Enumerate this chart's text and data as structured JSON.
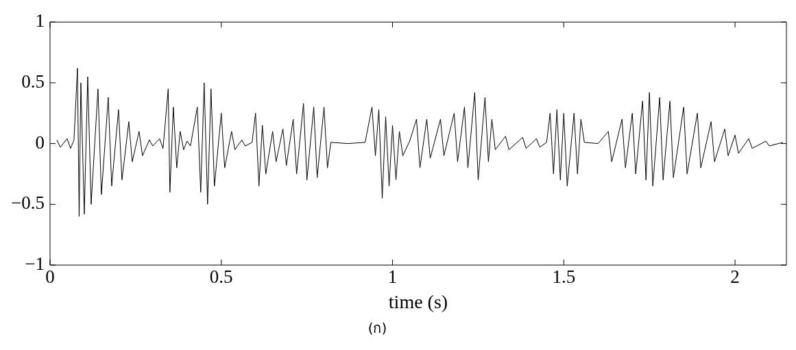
{
  "chart_data": {
    "type": "line",
    "xlabel": "time (s)",
    "annotations": [
      "(ก)"
    ],
    "xlim": [
      0,
      2.15
    ],
    "ylim": [
      -1,
      1
    ],
    "xticks": [
      0,
      0.5,
      1,
      1.5,
      2
    ],
    "yticks": [
      {
        "value": -1,
        "label": "−1"
      },
      {
        "value": -0.5,
        "label": "−0.5"
      },
      0,
      0.5,
      1
    ],
    "grid": false,
    "legend": false,
    "marker": "none",
    "line_style": "solid",
    "series": [
      {
        "color": "#000000",
        "x": [
          0.02,
          0.03,
          0.05,
          0.06,
          0.07,
          0.08,
          0.085,
          0.09,
          0.1,
          0.11,
          0.12,
          0.14,
          0.15,
          0.17,
          0.18,
          0.2,
          0.21,
          0.23,
          0.24,
          0.26,
          0.27,
          0.29,
          0.3,
          0.31,
          0.32,
          0.33,
          0.345,
          0.35,
          0.36,
          0.37,
          0.38,
          0.39,
          0.4,
          0.41,
          0.43,
          0.44,
          0.45,
          0.46,
          0.47,
          0.48,
          0.5,
          0.51,
          0.53,
          0.54,
          0.56,
          0.57,
          0.59,
          0.6,
          0.61,
          0.62,
          0.63,
          0.65,
          0.66,
          0.68,
          0.69,
          0.71,
          0.72,
          0.74,
          0.75,
          0.77,
          0.78,
          0.8,
          0.81,
          0.82,
          0.87,
          0.92,
          0.94,
          0.95,
          0.96,
          0.97,
          0.98,
          0.99,
          1.0,
          1.01,
          1.02,
          1.03,
          1.05,
          1.07,
          1.08,
          1.1,
          1.11,
          1.14,
          1.15,
          1.18,
          1.19,
          1.21,
          1.22,
          1.24,
          1.25,
          1.27,
          1.28,
          1.29,
          1.3,
          1.33,
          1.34,
          1.38,
          1.39,
          1.42,
          1.43,
          1.45,
          1.46,
          1.47,
          1.48,
          1.49,
          1.5,
          1.51,
          1.53,
          1.54,
          1.55,
          1.56,
          1.6,
          1.63,
          1.64,
          1.67,
          1.68,
          1.7,
          1.71,
          1.73,
          1.74,
          1.75,
          1.76,
          1.78,
          1.79,
          1.81,
          1.82,
          1.85,
          1.86,
          1.89,
          1.9,
          1.93,
          1.94,
          1.97,
          1.98,
          2.0,
          2.01,
          2.04,
          2.05,
          2.09,
          2.1,
          2.14
        ],
        "values": [
          0.03,
          -0.03,
          0.04,
          -0.04,
          0.03,
          0.62,
          -0.6,
          0.5,
          -0.58,
          0.55,
          -0.5,
          0.45,
          -0.42,
          0.38,
          -0.35,
          0.28,
          -0.3,
          0.18,
          -0.15,
          0.1,
          -0.1,
          0.03,
          -0.02,
          0.01,
          0.04,
          -0.04,
          0.45,
          -0.4,
          0.3,
          -0.2,
          0.1,
          -0.05,
          0.02,
          -0.02,
          0.3,
          -0.4,
          0.5,
          -0.5,
          0.45,
          -0.35,
          0.25,
          -0.2,
          0.1,
          -0.05,
          0.03,
          -0.02,
          0.01,
          0.25,
          -0.35,
          0.15,
          -0.25,
          0.1,
          -0.15,
          0.12,
          -0.18,
          0.2,
          -0.25,
          0.33,
          -0.3,
          0.3,
          -0.28,
          0.3,
          -0.2,
          0.01,
          0,
          0.01,
          0.3,
          -0.1,
          0.28,
          -0.45,
          0.22,
          -0.35,
          0.15,
          -0.3,
          0.1,
          -0.1,
          0.02,
          0.2,
          -0.2,
          0.2,
          -0.12,
          0.2,
          -0.1,
          0.25,
          -0.15,
          0.3,
          -0.2,
          0.42,
          -0.3,
          0.38,
          -0.15,
          0.2,
          -0.05,
          0.06,
          -0.05,
          0.05,
          -0.04,
          0.04,
          -0.03,
          0.01,
          0.25,
          -0.25,
          0.28,
          -0.3,
          0.25,
          -0.35,
          0.25,
          -0.25,
          0.2,
          0.01,
          0,
          0.1,
          -0.15,
          0.2,
          -0.2,
          0.25,
          -0.25,
          0.35,
          -0.3,
          0.42,
          -0.35,
          0.38,
          -0.3,
          0.35,
          -0.28,
          0.3,
          -0.25,
          0.25,
          -0.2,
          0.18,
          -0.15,
          0.12,
          -0.1,
          0.07,
          -0.08,
          0.04,
          -0.04,
          0.02,
          -0.02,
          0.01
        ]
      }
    ]
  }
}
